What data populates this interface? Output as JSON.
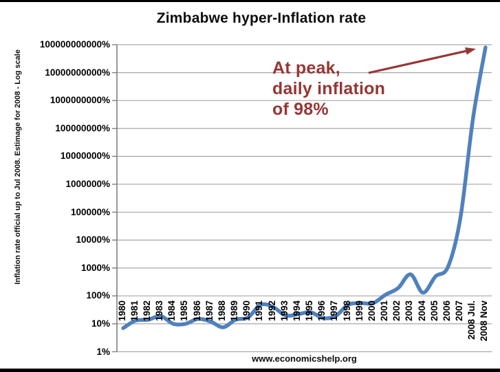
{
  "chart_data": {
    "type": "line",
    "title": "Zimbabwe hyper-Inflation rate",
    "ylabel": "Inflation rate official up to Jul 2008. Estimage for 2008 - Log scale",
    "xlabel": "",
    "y_scale": "log",
    "ylim_percent": [
      1,
      100000000000
    ],
    "grid": "horizontal",
    "legend": "none",
    "y_tick_labels": [
      "100000000000%",
      "10000000000%",
      "1000000000%",
      "100000000%",
      "10000000%",
      "1000000%",
      "100000%",
      "10000%",
      "1000%",
      "100%",
      "10%",
      "1%"
    ],
    "categories": [
      "1980",
      "1981",
      "1982",
      "1983",
      "1984",
      "1985",
      "1986",
      "1987",
      "1988",
      "1989",
      "1990",
      "1991",
      "1992",
      "1993",
      "1994",
      "1995",
      "1996",
      "1997",
      "1998",
      "1999",
      "2000",
      "2001",
      "2002",
      "2003",
      "2004",
      "2005",
      "2006",
      "2007",
      "2008 Jul.",
      "2008 Nov"
    ],
    "values": [
      7,
      13,
      14,
      19,
      10,
      10,
      15,
      12,
      7.5,
      14,
      17,
      48,
      40,
      20,
      22,
      26,
      16,
      19,
      48,
      55,
      55,
      110,
      190,
      590,
      130,
      500,
      1100,
      66000,
      231000000,
      79600000000
    ],
    "annotation": {
      "line1": "At peak,",
      "line2": "daily inflation",
      "line3": "of 98%"
    },
    "colors": {
      "line": "#4F81BD",
      "annotation": "#963634",
      "gridline": "#A6A6A6",
      "axis": "#7F7F7F",
      "text": "#000000",
      "frame_bar": "#000000",
      "background": "#FFFFFF"
    }
  },
  "footer": {
    "watermark": "www.economicshelp.org"
  }
}
